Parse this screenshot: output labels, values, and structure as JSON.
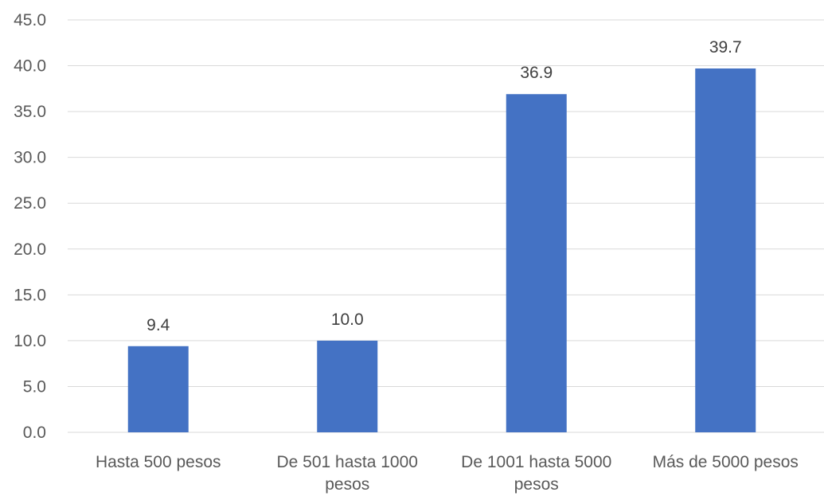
{
  "chart_data": {
    "type": "bar",
    "categories": [
      [
        "Hasta 500 pesos"
      ],
      [
        "De 501 hasta 1000",
        "pesos"
      ],
      [
        "De 1001 hasta 5000",
        "pesos"
      ],
      [
        "Más de 5000 pesos"
      ]
    ],
    "values": [
      9.4,
      10.0,
      36.9,
      39.7
    ],
    "data_labels": [
      "9.4",
      "10.0",
      "36.9",
      "39.7"
    ],
    "y_ticks": [
      "0.0",
      "5.0",
      "10.0",
      "15.0",
      "20.0",
      "25.0",
      "30.0",
      "35.0",
      "40.0",
      "45.0"
    ],
    "ylim": [
      0,
      45
    ],
    "title": "",
    "xlabel": "",
    "ylabel": "",
    "grid": true,
    "legend": "none",
    "bar_color": "#4472c4",
    "grid_color": "#d9d9d9",
    "text_color": "#595959"
  }
}
